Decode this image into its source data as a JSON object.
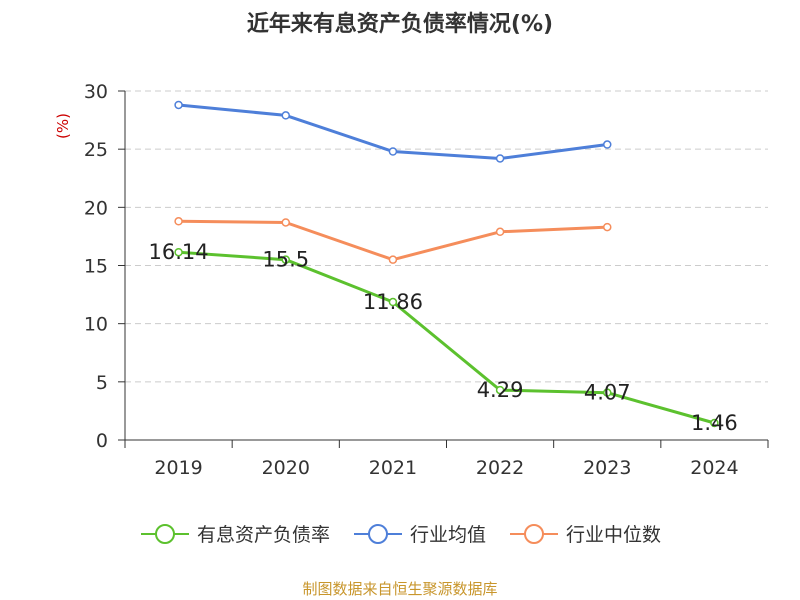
{
  "chart_data": {
    "type": "line",
    "title": "近年来有息资产负债率情况(%)",
    "ylabel": "(%)",
    "ylim": [
      0,
      30
    ],
    "yticks": [
      0,
      5,
      10,
      15,
      20,
      25,
      30
    ],
    "grid": true,
    "legend_position": "bottom",
    "categories": [
      "2019",
      "2020",
      "2021",
      "2022",
      "2023",
      "2024"
    ],
    "series": [
      {
        "name": "有息资产负债率",
        "color": "#5cc12e",
        "values": [
          16.14,
          15.5,
          11.86,
          4.29,
          4.07,
          1.46
        ],
        "labels": [
          "16.14",
          "15.5",
          "11.86",
          "4.29",
          "4.07",
          "1.46"
        ]
      },
      {
        "name": "行业均值",
        "color": "#4e7fd9",
        "values": [
          28.8,
          27.9,
          24.8,
          24.2,
          25.4,
          null
        ]
      },
      {
        "name": "行业中位数",
        "color": "#f58d5b",
        "values": [
          18.8,
          18.7,
          15.5,
          17.9,
          18.3,
          null
        ]
      }
    ]
  },
  "source": "制图数据来自恒生聚源数据库"
}
